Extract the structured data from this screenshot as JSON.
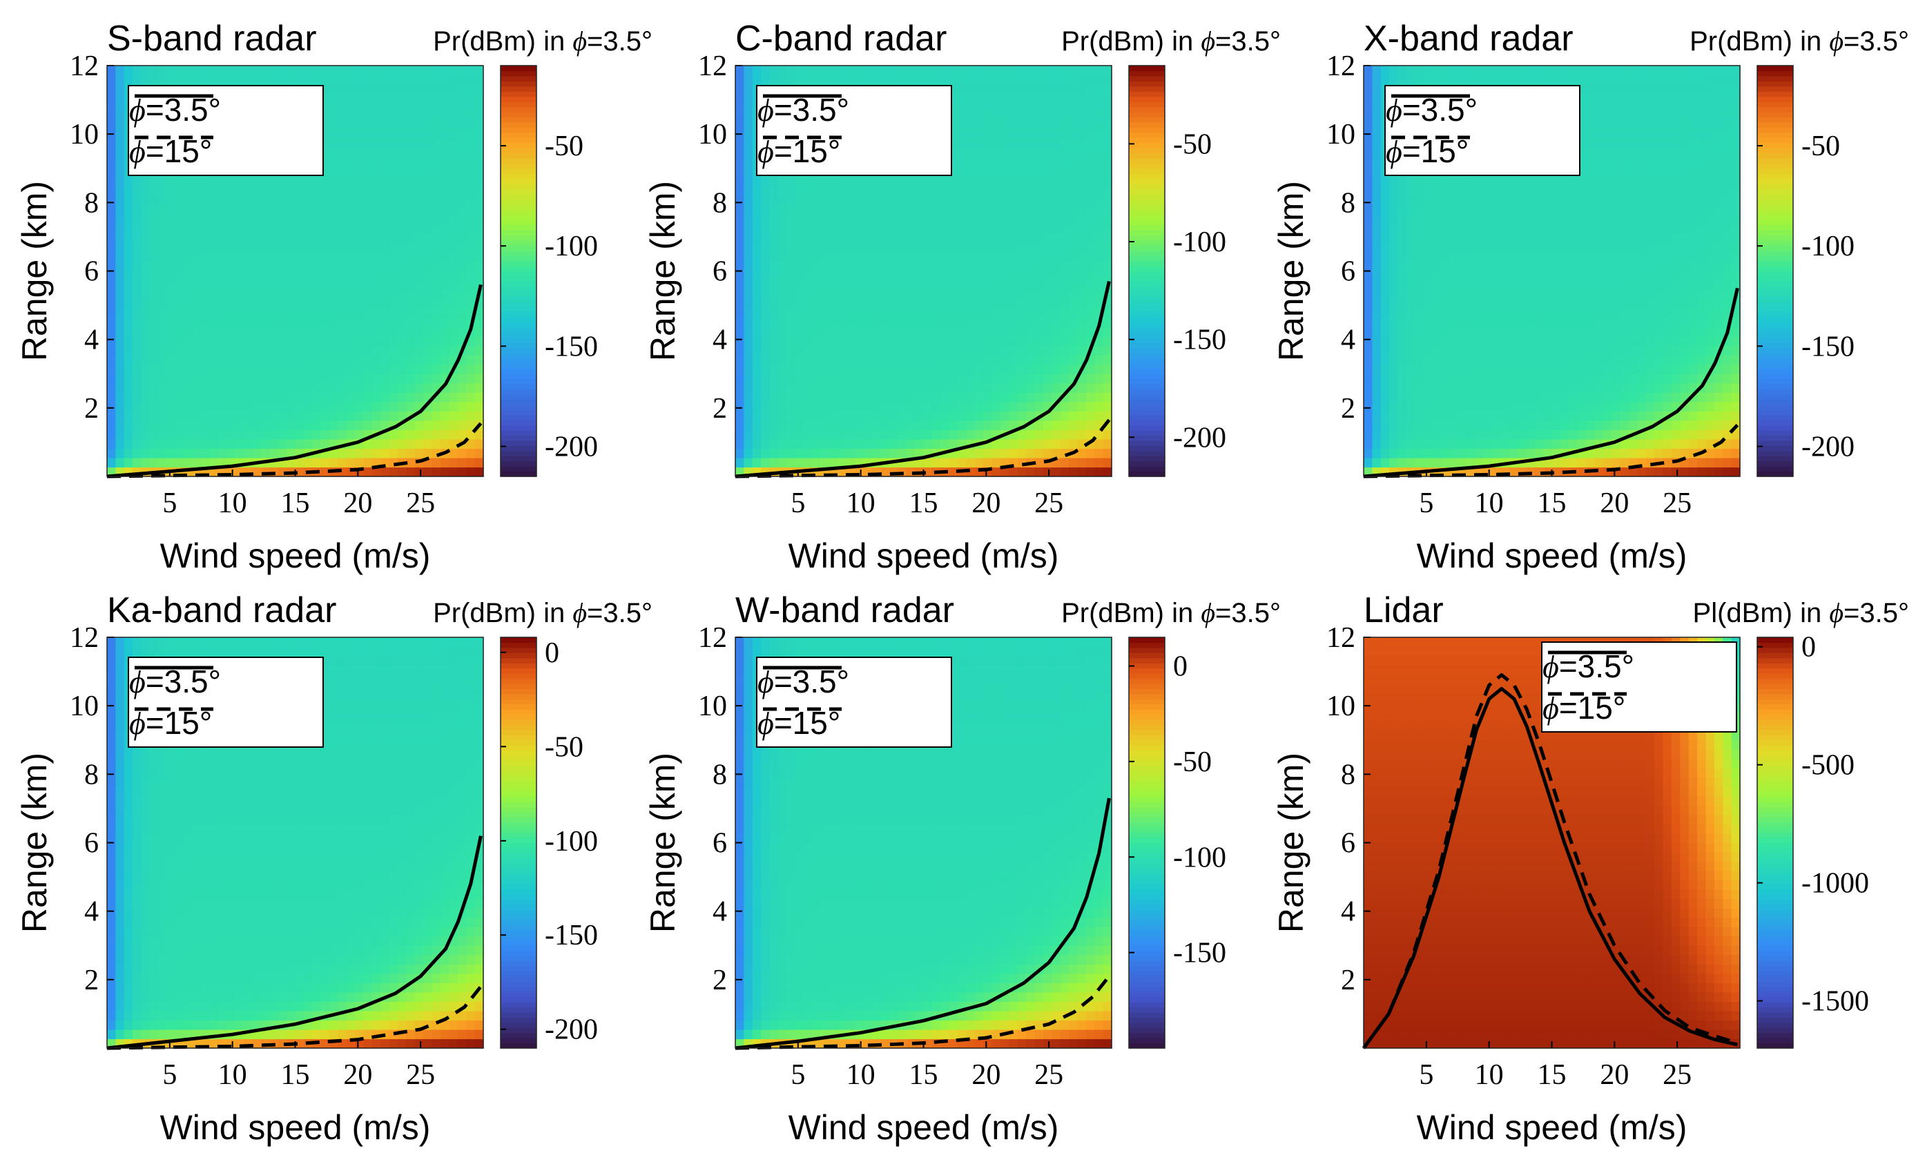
{
  "chart_data": [
    {
      "type": "heatmap",
      "title": "S-band radar",
      "colorbar_title": "Pr(dBm) in",
      "colorbar_phi_value": "=3.5°",
      "xlabel": "Wind speed (m/s)",
      "ylabel": "Range (km)",
      "xlim": [
        0,
        30
      ],
      "ylim": [
        0,
        12
      ],
      "xticks": [
        5,
        10,
        15,
        20,
        25
      ],
      "yticks": [
        2,
        4,
        6,
        8,
        10,
        12
      ],
      "clim": [
        -215,
        -10
      ],
      "colorbar_ticks": [
        -50,
        -100,
        -150,
        -200
      ],
      "legend_position": "top-left",
      "series": [
        {
          "name": "=3.5°",
          "style": "solid",
          "x": [
            0,
            5,
            10,
            15,
            20,
            23,
            25,
            27,
            28,
            29,
            29.8
          ],
          "y": [
            0,
            0.15,
            0.3,
            0.55,
            1.0,
            1.45,
            1.9,
            2.7,
            3.4,
            4.3,
            5.6
          ]
        },
        {
          "name": "=15°",
          "style": "dashed",
          "x": [
            0,
            10,
            15,
            20,
            25,
            27,
            28.5,
            29.8
          ],
          "y": [
            0,
            0.05,
            0.1,
            0.2,
            0.45,
            0.7,
            1.0,
            1.55
          ]
        }
      ]
    },
    {
      "type": "heatmap",
      "title": "C-band radar",
      "colorbar_title": "Pr(dBm) in",
      "colorbar_phi_value": "=3.5°",
      "xlabel": "Wind speed (m/s)",
      "ylabel": "Range (km)",
      "xlim": [
        0,
        30
      ],
      "ylim": [
        0,
        12
      ],
      "xticks": [
        5,
        10,
        15,
        20,
        25
      ],
      "yticks": [
        2,
        4,
        6,
        8,
        10,
        12
      ],
      "clim": [
        -220,
        -10
      ],
      "colorbar_ticks": [
        -50,
        -100,
        -150,
        -200
      ],
      "legend_position": "top-left",
      "series": [
        {
          "name": "=3.5°",
          "style": "solid",
          "x": [
            0,
            5,
            10,
            15,
            20,
            23,
            25,
            27,
            28,
            29,
            29.8
          ],
          "y": [
            0,
            0.15,
            0.3,
            0.55,
            1.0,
            1.45,
            1.9,
            2.7,
            3.4,
            4.4,
            5.7
          ]
        },
        {
          "name": "=15°",
          "style": "dashed",
          "x": [
            0,
            10,
            15,
            20,
            25,
            27,
            28.5,
            29.8
          ],
          "y": [
            0,
            0.05,
            0.1,
            0.2,
            0.45,
            0.7,
            1.05,
            1.65
          ]
        }
      ]
    },
    {
      "type": "heatmap",
      "title": "X-band radar",
      "colorbar_title": "Pr(dBm) in",
      "colorbar_phi_value": "=3.5°",
      "xlabel": "Wind speed (m/s)",
      "ylabel": "Range (km)",
      "xlim": [
        0,
        30
      ],
      "ylim": [
        0,
        12
      ],
      "xticks": [
        5,
        10,
        15,
        20,
        25
      ],
      "yticks": [
        2,
        4,
        6,
        8,
        10,
        12
      ],
      "clim": [
        -215,
        -10
      ],
      "colorbar_ticks": [
        -50,
        -100,
        -150,
        -200
      ],
      "legend_position": "top-left",
      "series": [
        {
          "name": "=3.5°",
          "style": "solid",
          "x": [
            0,
            5,
            10,
            15,
            20,
            23,
            25,
            27,
            28,
            29,
            29.8
          ],
          "y": [
            0,
            0.15,
            0.3,
            0.55,
            1.0,
            1.45,
            1.9,
            2.65,
            3.3,
            4.2,
            5.5
          ]
        },
        {
          "name": "=15°",
          "style": "dashed",
          "x": [
            0,
            10,
            15,
            20,
            25,
            27,
            28.5,
            29.8
          ],
          "y": [
            0,
            0.05,
            0.1,
            0.2,
            0.45,
            0.7,
            1.0,
            1.5
          ]
        }
      ]
    },
    {
      "type": "heatmap",
      "title": "Ka-band radar",
      "colorbar_title": "Pr(dBm) in",
      "colorbar_phi_value": "=3.5°",
      "xlabel": "Wind speed (m/s)",
      "ylabel": "Range (km)",
      "xlim": [
        0,
        30
      ],
      "ylim": [
        0,
        12
      ],
      "xticks": [
        5,
        10,
        15,
        20,
        25
      ],
      "yticks": [
        2,
        4,
        6,
        8,
        10,
        12
      ],
      "clim": [
        -210,
        8
      ],
      "colorbar_ticks": [
        0,
        -50,
        -100,
        -150,
        -200
      ],
      "legend_position": "top-left",
      "series": [
        {
          "name": "=3.5°",
          "style": "solid",
          "x": [
            0,
            5,
            10,
            15,
            20,
            23,
            25,
            27,
            28,
            29,
            29.8
          ],
          "y": [
            0,
            0.2,
            0.4,
            0.7,
            1.15,
            1.6,
            2.1,
            2.9,
            3.7,
            4.8,
            6.2
          ]
        },
        {
          "name": "=15°",
          "style": "dashed",
          "x": [
            0,
            10,
            15,
            20,
            25,
            27,
            28.5,
            29.8
          ],
          "y": [
            0,
            0.05,
            0.12,
            0.25,
            0.55,
            0.85,
            1.2,
            1.8
          ]
        }
      ]
    },
    {
      "type": "heatmap",
      "title": "W-band radar",
      "colorbar_title": "Pr(dBm) in",
      "colorbar_phi_value": "=3.5°",
      "xlabel": "Wind speed (m/s)",
      "ylabel": "Range (km)",
      "xlim": [
        0,
        30
      ],
      "ylim": [
        0,
        12
      ],
      "xticks": [
        5,
        10,
        15,
        20,
        25
      ],
      "yticks": [
        2,
        4,
        6,
        8,
        10,
        12
      ],
      "clim": [
        -200,
        15
      ],
      "colorbar_ticks": [
        0,
        -50,
        -100,
        -150
      ],
      "legend_position": "top-left",
      "series": [
        {
          "name": "=3.5°",
          "style": "solid",
          "x": [
            0,
            5,
            10,
            15,
            20,
            23,
            25,
            27,
            28,
            29,
            29.8
          ],
          "y": [
            0,
            0.2,
            0.45,
            0.8,
            1.3,
            1.9,
            2.5,
            3.5,
            4.4,
            5.7,
            7.3
          ]
        },
        {
          "name": "=15°",
          "style": "dashed",
          "x": [
            0,
            10,
            15,
            20,
            25,
            27,
            28.5,
            29.8
          ],
          "y": [
            0,
            0.07,
            0.15,
            0.3,
            0.7,
            1.05,
            1.5,
            2.1
          ]
        }
      ]
    },
    {
      "type": "heatmap",
      "title": "Lidar",
      "colorbar_title": "Pl(dBm) in",
      "colorbar_phi_value": "=3.5°",
      "xlabel": "Wind speed (m/s)",
      "ylabel": "Range (km)",
      "xlim": [
        0,
        30
      ],
      "ylim": [
        0,
        12
      ],
      "xticks": [
        5,
        10,
        15,
        20,
        25
      ],
      "yticks": [
        2,
        4,
        6,
        8,
        10,
        12
      ],
      "clim": [
        -1700,
        40
      ],
      "colorbar_ticks": [
        0,
        -500,
        -1000,
        -1500
      ],
      "legend_position": "top-right",
      "series": [
        {
          "name": "=3.5°",
          "style": "solid",
          "x": [
            0,
            2,
            4,
            6,
            8,
            9,
            10,
            11,
            12,
            13,
            14,
            16,
            18,
            20,
            22,
            24,
            26,
            28,
            29.8
          ],
          "y": [
            0,
            1.0,
            2.7,
            5.0,
            7.9,
            9.3,
            10.2,
            10.5,
            10.2,
            9.4,
            8.3,
            6.0,
            4.0,
            2.6,
            1.6,
            0.9,
            0.5,
            0.25,
            0.1
          ]
        },
        {
          "name": "=15°",
          "style": "dashed",
          "x": [
            0,
            2,
            4,
            6,
            8,
            9,
            10,
            11,
            12,
            13,
            14,
            16,
            18,
            20,
            22,
            24,
            26,
            28,
            29.8
          ],
          "y": [
            0,
            1.0,
            2.8,
            5.2,
            8.2,
            9.7,
            10.6,
            10.9,
            10.6,
            9.9,
            8.9,
            6.6,
            4.5,
            3.0,
            1.9,
            1.1,
            0.6,
            0.35,
            0.15
          ]
        }
      ]
    }
  ]
}
